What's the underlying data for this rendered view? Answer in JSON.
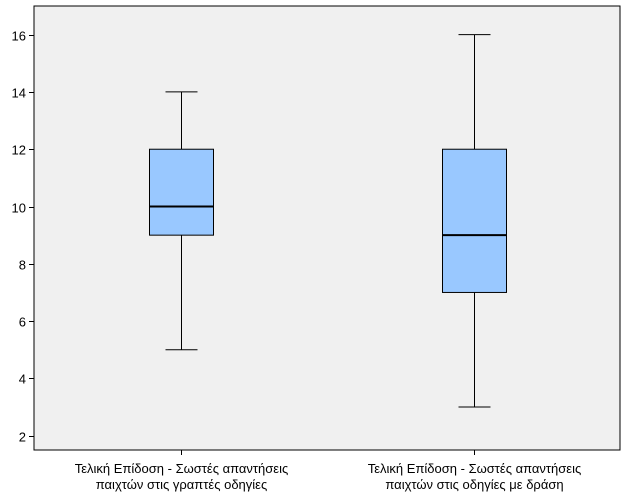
{
  "chart_data": {
    "type": "boxplot",
    "title": "",
    "xlabel": "",
    "ylabel": "",
    "ylim": [
      1.5,
      17
    ],
    "yticks": [
      2,
      4,
      6,
      8,
      10,
      12,
      14,
      16
    ],
    "grid": false,
    "legend": "none",
    "categories": [
      [
        "Τελική Επίδοση - Σωστές απαντήσεις",
        "παιχτών στις γραπτές οδηγίες"
      ],
      [
        "Τελική Επίδοση - Σωστές απαντήσεις",
        "παιχτών στις οδηγίες με δράση"
      ]
    ],
    "boxes": [
      {
        "min": 5,
        "q1": 9,
        "median": 10,
        "q3": 12,
        "max": 14
      },
      {
        "min": 3,
        "q1": 7,
        "median": 9,
        "q3": 12,
        "max": 16
      }
    ],
    "colors": {
      "plot_background": "#f0f0f0",
      "box_fill": "#99c8ff",
      "box_stroke": "#000000",
      "median_line": "#000000"
    }
  }
}
